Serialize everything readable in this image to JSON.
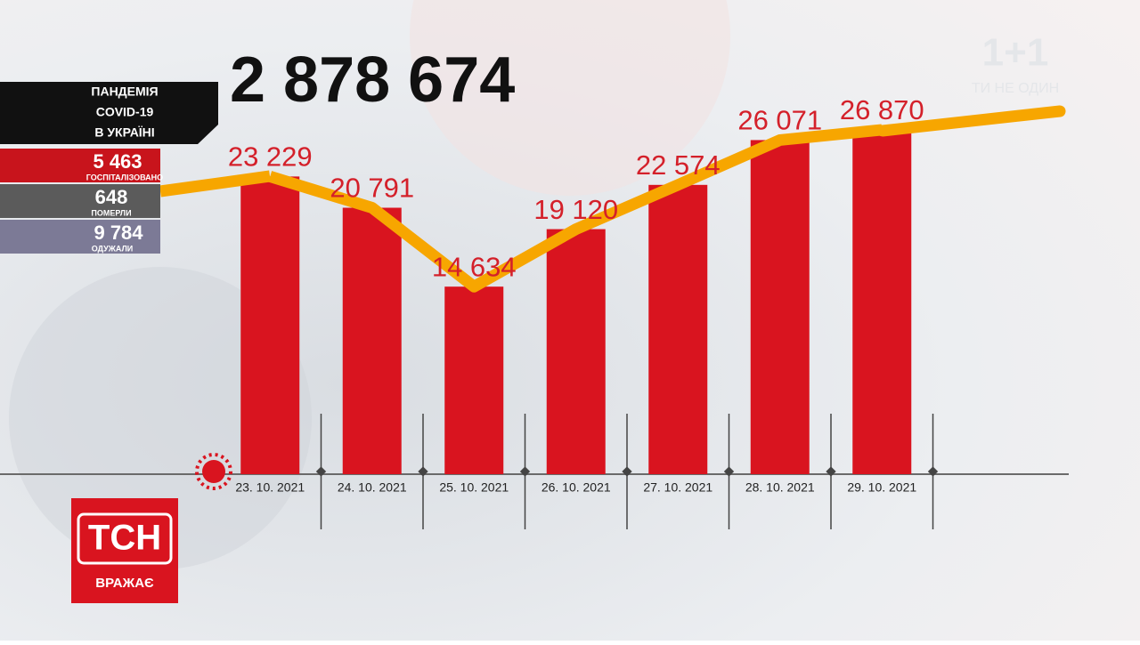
{
  "header": {
    "total": "2 878 674",
    "panel": {
      "title": [
        "ПАНДЕМІЯ",
        "COVID-19",
        "В УКРАЇНІ"
      ],
      "stats": [
        {
          "value": "5 463",
          "label": "ГОСПІТАЛІЗОВАНО"
        },
        {
          "value": "648",
          "label": "ПОМЕРЛИ"
        },
        {
          "value": "9 784",
          "label": "ОДУЖАЛИ"
        }
      ]
    }
  },
  "logo": {
    "channel": "1+1",
    "slogan": "ТИ НЕ ОДИН"
  },
  "badge": {
    "name": "ТСН",
    "tagline": "ВРАЖАЄ"
  },
  "chart_data": {
    "type": "bar",
    "categories": [
      "23. 10. 2021",
      "24. 10. 2021",
      "25. 10. 2021",
      "26. 10. 2021",
      "27. 10. 2021",
      "28. 10. 2021",
      "29. 10. 2021"
    ],
    "values": [
      23229,
      20791,
      14634,
      19120,
      22574,
      26071,
      26870
    ],
    "value_labels": [
      "23 229",
      "20 791",
      "14 634",
      "19 120",
      "22 574",
      "26 071",
      "26 870"
    ],
    "color": "#d9141f",
    "line_color": "#f7a600",
    "ylim": [
      0,
      37000
    ]
  }
}
